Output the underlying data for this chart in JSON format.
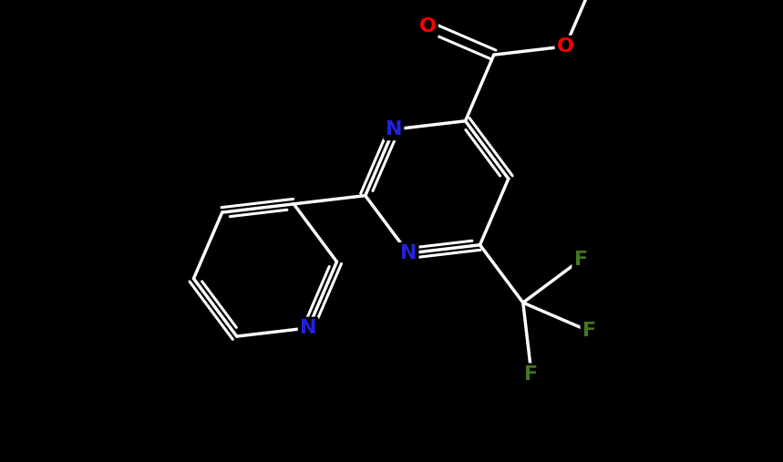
{
  "background_color": "#000000",
  "atom_colors": {
    "C": "#ffffff",
    "N": "#2222dd",
    "O": "#ff0000",
    "F": "#447722"
  },
  "bond_color": "#ffffff",
  "bond_width": 2.2,
  "font_size_atom": 16,
  "fig_width": 8.59,
  "fig_height": 5.07,
  "dpi": 100
}
